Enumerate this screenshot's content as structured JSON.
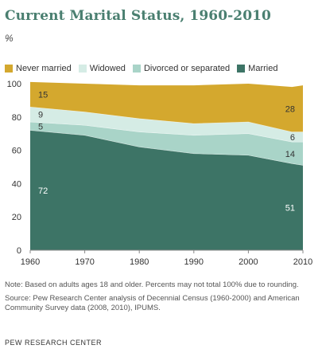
{
  "title": "Current Marital Status, 1960-2010",
  "unit_label": "%",
  "chart_data": {
    "type": "area",
    "stacked": true,
    "x": [
      1960,
      1970,
      1980,
      1990,
      2000,
      2008,
      2010
    ],
    "xticks": [
      1960,
      1970,
      1980,
      1990,
      2000,
      2010
    ],
    "yticks": [
      0,
      20,
      40,
      60,
      80,
      100
    ],
    "ylim": [
      0,
      100
    ],
    "xlim": [
      1960,
      2010
    ],
    "legend_position": "top",
    "series": [
      {
        "name": "Married",
        "color": "#3d7466",
        "values": [
          72,
          69,
          62,
          58,
          57,
          52,
          51
        ]
      },
      {
        "name": "Divorced or separated",
        "color": "#a9d4c8",
        "values": [
          5,
          6,
          9,
          11,
          13,
          13,
          14
        ]
      },
      {
        "name": "Widowed",
        "color": "#d5ece5",
        "values": [
          9,
          8,
          8,
          7,
          7,
          6,
          6
        ]
      },
      {
        "name": "Never married",
        "color": "#d4a82e",
        "values": [
          15,
          17,
          20,
          23,
          23,
          27,
          28
        ]
      }
    ],
    "legend_order": [
      "Never married",
      "Widowed",
      "Divorced or separated",
      "Married"
    ],
    "data_labels": [
      {
        "series": "Never married",
        "x": 1960,
        "text": "15",
        "color": "#333333"
      },
      {
        "series": "Widowed",
        "x": 1960,
        "text": "9",
        "color": "#333333"
      },
      {
        "series": "Divorced or separated",
        "x": 1960,
        "text": "5",
        "color": "#333333"
      },
      {
        "series": "Married",
        "x": 1960,
        "text": "72",
        "color": "#ffffff"
      },
      {
        "series": "Never married",
        "x": 2010,
        "text": "28",
        "color": "#333333"
      },
      {
        "series": "Widowed",
        "x": 2010,
        "text": "6",
        "color": "#333333"
      },
      {
        "series": "Divorced or separated",
        "x": 2010,
        "text": "14",
        "color": "#333333"
      },
      {
        "series": "Married",
        "x": 2010,
        "text": "51",
        "color": "#ffffff"
      }
    ]
  },
  "notes": {
    "note": "Note: Based on adults ages 18 and older. Percents may not total 100% due to rounding.",
    "source": "Source: Pew Research Center analysis of Decennial Census (1960-2000) and American Community Survey data (2008, 2010), IPUMS."
  },
  "footer": "PEW RESEARCH CENTER"
}
